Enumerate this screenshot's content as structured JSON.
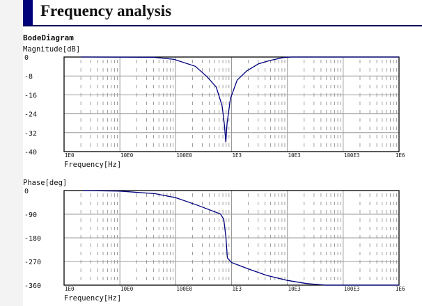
{
  "header": {
    "title": "Frequency analysis"
  },
  "chart_data": [
    {
      "type": "line",
      "title": "BodeDiagram",
      "ylabel": "Magnitude[dB]",
      "xlabel": "Frequency[Hz]",
      "xscale": "log",
      "xlim": [
        1,
        1000000
      ],
      "ylim": [
        -40,
        0
      ],
      "xticks": [
        "1E0",
        "10E0",
        "100E0",
        "1E3",
        "10E3",
        "100E3",
        "1E6"
      ],
      "yticks": [
        "0",
        "-8",
        "-16",
        "-24",
        "-32",
        "-40"
      ],
      "ytick_values": [
        0,
        -8,
        -16,
        -24,
        -32,
        -40
      ],
      "grid": true,
      "color": "#00007f",
      "series": [
        {
          "x": [
            2,
            40,
            94,
            224,
            363,
            531,
            676,
            740,
            790,
            832,
            955,
            1259,
            1862,
            3020,
            4786,
            8511,
            12000,
            1000000
          ],
          "y": [
            0,
            -0.1,
            -1,
            -3.9,
            -8.3,
            -12.7,
            -20.6,
            -28,
            -36,
            -28,
            -17.6,
            -9.8,
            -5.9,
            -2.9,
            -1.5,
            -0.2,
            0,
            0
          ]
        }
      ]
    },
    {
      "type": "line",
      "ylabel": "Phase[deg]",
      "xlabel": "Frequency[Hz]",
      "xscale": "log",
      "xlim": [
        1,
        1000000
      ],
      "ylim": [
        -360,
        0
      ],
      "xticks": [
        "1E0",
        "10E0",
        "100E0",
        "1E3",
        "10E3",
        "100E3",
        "1E6"
      ],
      "yticks": [
        "0",
        "-90",
        "-180",
        "-270",
        "-360"
      ],
      "ytick_values": [
        0,
        -90,
        -180,
        -270,
        -360
      ],
      "grid": true,
      "color": "#00007f",
      "series": [
        {
          "x": [
            2.2,
            10,
            43,
            100,
            240,
            631,
            724,
            794,
            841,
            1000,
            1995,
            4266,
            10000,
            21878,
            47863,
            1000000
          ],
          "y": [
            0,
            -2,
            -12,
            -27,
            -55,
            -89,
            -109,
            -180,
            -256,
            -274,
            -298,
            -323,
            -342,
            -354,
            -360,
            -360
          ]
        }
      ]
    }
  ]
}
